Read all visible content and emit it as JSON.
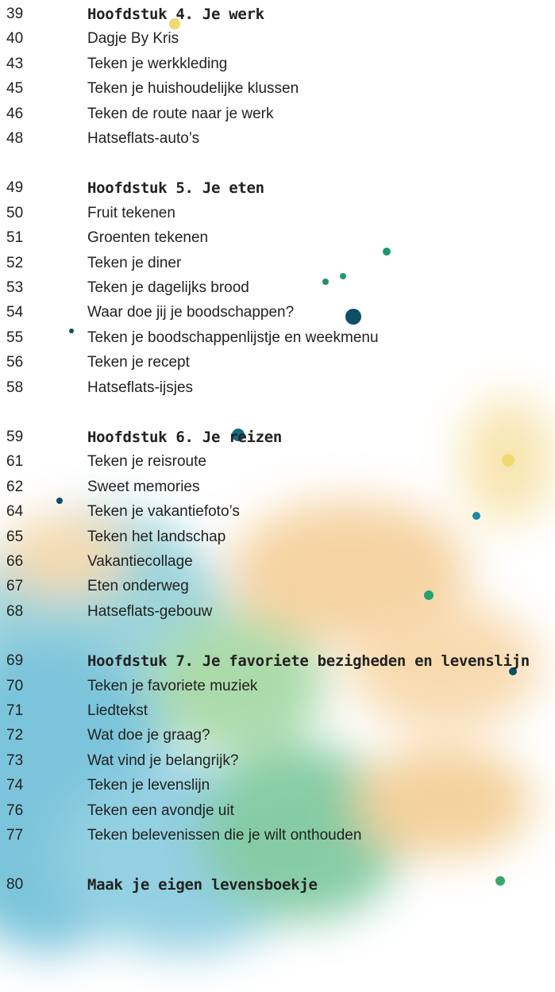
{
  "sections": [
    {
      "heading": {
        "page": 39,
        "title": "Hoofdstuk 4. Je werk"
      },
      "items": [
        {
          "page": 40,
          "title": "Dagje By Kris"
        },
        {
          "page": 43,
          "title": "Teken je werkkleding"
        },
        {
          "page": 45,
          "title": "Teken je huishoudelijke klussen"
        },
        {
          "page": 46,
          "title": "Teken de route naar je werk"
        },
        {
          "page": 48,
          "title": "Hatseflats-auto’s"
        }
      ]
    },
    {
      "heading": {
        "page": 49,
        "title": "Hoofdstuk 5. Je eten"
      },
      "items": [
        {
          "page": 50,
          "title": "Fruit tekenen"
        },
        {
          "page": 51,
          "title": "Groenten tekenen"
        },
        {
          "page": 52,
          "title": "Teken je diner"
        },
        {
          "page": 53,
          "title": "Teken je dagelijks brood"
        },
        {
          "page": 54,
          "title": "Waar doe jij je boodschappen?"
        },
        {
          "page": 55,
          "title": "Teken je boodschappenlijstje en weekmenu"
        },
        {
          "page": 56,
          "title": "Teken je recept"
        },
        {
          "page": 58,
          "title": "Hatseflats-ijsjes"
        }
      ]
    },
    {
      "heading": {
        "page": 59,
        "title": "Hoofdstuk 6. Je reizen"
      },
      "items": [
        {
          "page": 61,
          "title": "Teken je reisroute"
        },
        {
          "page": 62,
          "title": "Sweet memories"
        },
        {
          "page": 64,
          "title": "Teken je vakantiefoto’s"
        },
        {
          "page": 65,
          "title": "Teken het landschap"
        },
        {
          "page": 66,
          "title": "Vakantiecollage"
        },
        {
          "page": 67,
          "title": "Eten onderweg"
        },
        {
          "page": 68,
          "title": "Hatseflats-gebouw"
        }
      ]
    },
    {
      "heading": {
        "page": 69,
        "title": "Hoofdstuk 7. Je favoriete bezigheden en levenslijn"
      },
      "items": [
        {
          "page": 70,
          "title": "Teken je favoriete muziek"
        },
        {
          "page": 71,
          "title": "Liedtekst"
        },
        {
          "page": 72,
          "title": "Wat doe je graag?"
        },
        {
          "page": 73,
          "title": "Wat vind je belangrijk?"
        },
        {
          "page": 74,
          "title": "Teken je levenslijn"
        },
        {
          "page": 76,
          "title": "Teken een avondje uit"
        },
        {
          "page": 77,
          "title": "Teken belevenissen die je wilt onthouden"
        }
      ]
    }
  ],
  "final": {
    "page": 80,
    "title": "Maak je eigen levensboekje"
  }
}
